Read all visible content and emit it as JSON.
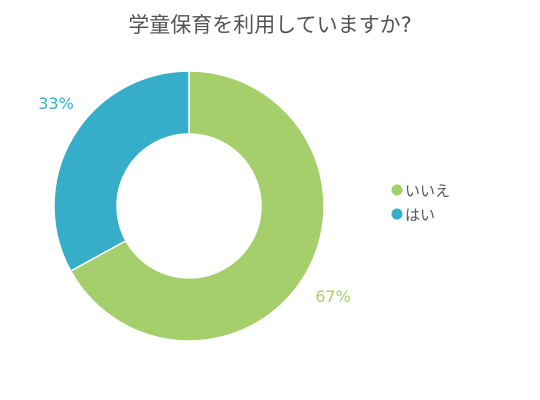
{
  "chart_data": {
    "type": "pie",
    "title": "学童保育を利用していますか?",
    "categories": [
      "いいえ",
      "はい"
    ],
    "values": [
      67,
      33
    ],
    "value_labels": [
      "67%",
      "33%"
    ],
    "colors": [
      "#a5cf6a",
      "#36aec9"
    ],
    "donut": true,
    "legend_position": "right"
  }
}
